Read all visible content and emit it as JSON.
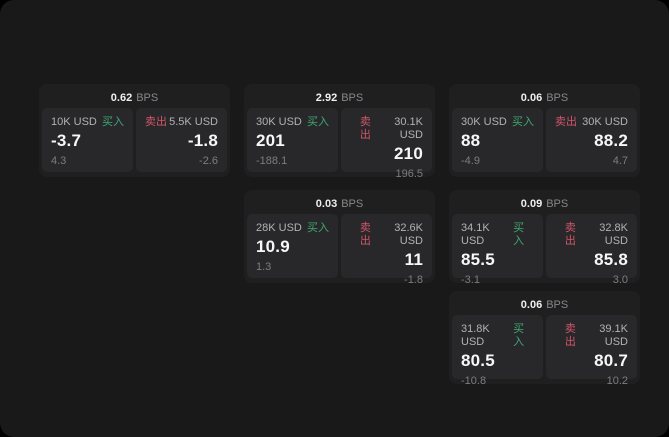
{
  "labels": {
    "bps_unit": "BPS",
    "buy": "买入",
    "sell": "卖出"
  },
  "colors": {
    "buy_green": "#3fa873",
    "sell_red": "#d2556a",
    "surface_bg": "#19191a",
    "card_bg": "#1f1f20",
    "panel_bg": "#28282a"
  },
  "cards": [
    {
      "bps": "0.62",
      "grid": {
        "row": 0,
        "col": 0
      },
      "buy": {
        "amount": "10K USD",
        "price": "-3.7",
        "delta": "4.3"
      },
      "sell": {
        "amount": "5.5K USD",
        "price": "-1.8",
        "delta": "-2.6"
      }
    },
    {
      "bps": "2.92",
      "grid": {
        "row": 0,
        "col": 1
      },
      "buy": {
        "amount": "30K USD",
        "price": "201",
        "delta": "-188.1"
      },
      "sell": {
        "amount": "30.1K USD",
        "price": "210",
        "delta": "196.5"
      }
    },
    {
      "bps": "0.06",
      "grid": {
        "row": 0,
        "col": 2
      },
      "buy": {
        "amount": "30K USD",
        "price": "88",
        "delta": "-4.9"
      },
      "sell": {
        "amount": "30K USD",
        "price": "88.2",
        "delta": "4.7"
      }
    },
    {
      "bps": "0.03",
      "grid": {
        "row": 1,
        "col": 1
      },
      "buy": {
        "amount": "28K USD",
        "price": "10.9",
        "delta": "1.3"
      },
      "sell": {
        "amount": "32.6K USD",
        "price": "11",
        "delta": "-1.8"
      }
    },
    {
      "bps": "0.09",
      "grid": {
        "row": 1,
        "col": 2
      },
      "buy": {
        "amount": "34.1K USD",
        "price": "85.5",
        "delta": "-3.1"
      },
      "sell": {
        "amount": "32.8K USD",
        "price": "85.8",
        "delta": "3.0"
      }
    },
    {
      "bps": "0.06",
      "grid": {
        "row": 2,
        "col": 2
      },
      "buy": {
        "amount": "31.8K USD",
        "price": "80.5",
        "delta": "-10.8"
      },
      "sell": {
        "amount": "39.1K USD",
        "price": "80.7",
        "delta": "10.2"
      }
    }
  ]
}
